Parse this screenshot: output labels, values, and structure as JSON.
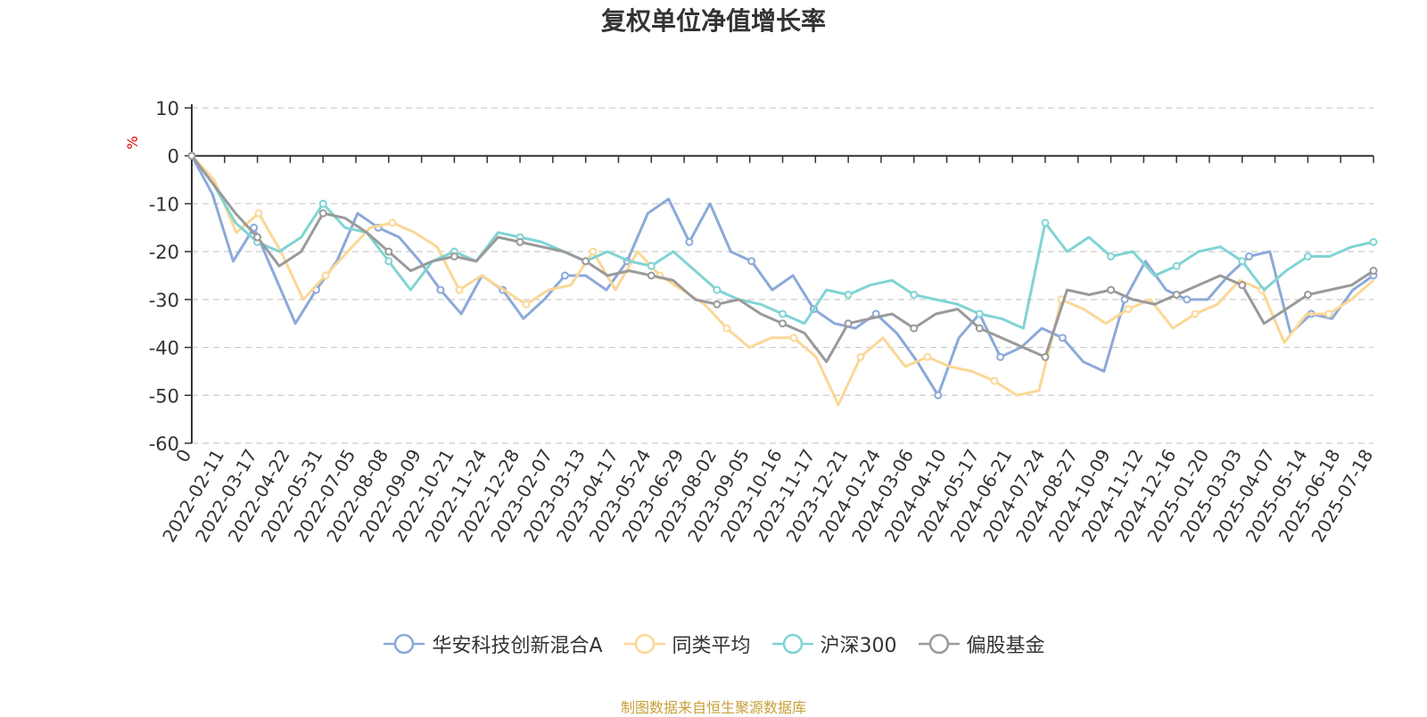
{
  "chart_data": {
    "type": "line",
    "title": "复权单位净值增长率",
    "ylabel": "%",
    "ylim": [
      -60,
      10
    ],
    "yticks": [
      10,
      0,
      -10,
      -20,
      -30,
      -40,
      -50,
      -60
    ],
    "grid": true,
    "legend_position": "bottom",
    "x_start_label": "0",
    "x_tick_labels": [
      "2022-02-11",
      "2022-03-17",
      "2022-04-22",
      "2022-05-31",
      "2022-07-05",
      "2022-08-08",
      "2022-09-09",
      "2022-10-21",
      "2022-11-24",
      "2022-12-28",
      "2023-02-07",
      "2023-03-13",
      "2023-04-17",
      "2023-05-24",
      "2023-06-29",
      "2023-08-02",
      "2023-09-05",
      "2023-10-16",
      "2023-11-17",
      "2023-12-21",
      "2024-01-24",
      "2024-03-06",
      "2024-04-10",
      "2024-05-17",
      "2024-06-21",
      "2024-07-24",
      "2024-08-27",
      "2024-10-09",
      "2024-11-12",
      "2024-12-16",
      "2025-01-20",
      "2025-03-03",
      "2025-04-07",
      "2025-05-14",
      "2025-06-18",
      "2025-07-18"
    ],
    "series": [
      {
        "name": "华安科技创新混合A",
        "color": "#8ca9d9",
        "values": [
          0,
          -8,
          -22,
          -15,
          -25,
          -35,
          -28,
          -22,
          -12,
          -15,
          -17,
          -22,
          -28,
          -33,
          -25,
          -28,
          -34,
          -30,
          -25,
          -25,
          -28,
          -22,
          -12,
          -9,
          -18,
          -10,
          -20,
          -22,
          -28,
          -25,
          -32,
          -35,
          -36,
          -33,
          -37,
          -43,
          -50,
          -38,
          -33,
          -42,
          -40,
          -36,
          -38,
          -43,
          -45,
          -30,
          -22,
          -28,
          -30,
          -30,
          -25,
          -21,
          -20,
          -37,
          -33,
          -34,
          -28,
          -25
        ]
      },
      {
        "name": "同类平均",
        "color": "#fbd796",
        "values": [
          0,
          -5,
          -16,
          -12,
          -20,
          -30,
          -25,
          -20,
          -15,
          -14,
          -16,
          -19,
          -28,
          -25,
          -28,
          -31,
          -28,
          -27,
          -20,
          -28,
          -20,
          -25,
          -28,
          -31,
          -36,
          -40,
          -38,
          -38,
          -42,
          -52,
          -42,
          -38,
          -44,
          -42,
          -44,
          -45,
          -47,
          -50,
          -49,
          -30,
          -32,
          -35,
          -32,
          -30,
          -36,
          -33,
          -31,
          -26,
          -28,
          -39,
          -33,
          -33,
          -30,
          -26
        ]
      },
      {
        "name": "沪深300",
        "color": "#80d4d4",
        "values": [
          0,
          -6,
          -14,
          -18,
          -20,
          -17,
          -10,
          -15,
          -16,
          -22,
          -28,
          -22,
          -20,
          -22,
          -16,
          -17,
          -18,
          -20,
          -22,
          -20,
          -22,
          -23,
          -20,
          -24,
          -28,
          -30,
          -31,
          -33,
          -35,
          -28,
          -29,
          -27,
          -26,
          -29,
          -30,
          -31,
          -33,
          -34,
          -36,
          -14,
          -20,
          -17,
          -21,
          -20,
          -25,
          -23,
          -20,
          -19,
          -22,
          -28,
          -24,
          -21,
          -21,
          -19,
          -18
        ]
      },
      {
        "name": "偏股基金",
        "color": "#9a9a9a",
        "values": [
          0,
          -6,
          -12,
          -17,
          -23,
          -20,
          -12,
          -13,
          -16,
          -20,
          -24,
          -22,
          -21,
          -22,
          -17,
          -18,
          -19,
          -20,
          -22,
          -25,
          -24,
          -25,
          -26,
          -30,
          -31,
          -30,
          -33,
          -35,
          -37,
          -43,
          -35,
          -34,
          -33,
          -36,
          -33,
          -32,
          -36,
          -38,
          -40,
          -42,
          -28,
          -29,
          -28,
          -30,
          -31,
          -29,
          -27,
          -25,
          -27,
          -35,
          -32,
          -29,
          -28,
          -27,
          -24
        ]
      }
    ]
  },
  "source_note": "制图数据来自恒生聚源数据库"
}
